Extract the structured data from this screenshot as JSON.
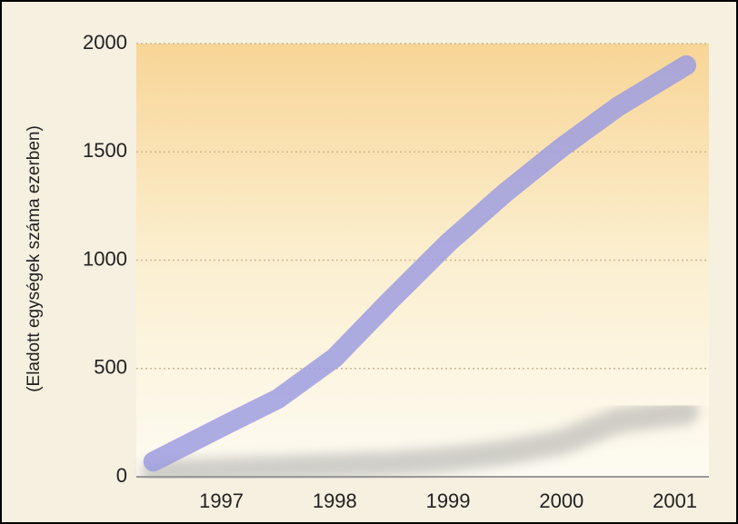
{
  "chart_data": {
    "type": "line",
    "y_label": "(Eladott egységek száma ezerben)",
    "x": [
      1996.4,
      1997,
      1997.5,
      1998,
      1998.5,
      1999,
      1999.5,
      2000,
      2000.5,
      2001.1
    ],
    "series": [
      {
        "color": "#9d9ee0",
        "values": [
          70,
          230,
          360,
          550,
          820,
          1080,
          1310,
          1520,
          1710,
          1900
        ]
      },
      {
        "color": "#9a9a9a",
        "values": [
          20,
          30,
          40,
          50,
          60,
          80,
          110,
          160,
          260,
          300
        ]
      }
    ],
    "xlim": [
      1996.25,
      2001.3
    ],
    "xticks": [
      1997,
      1998,
      1999,
      2000,
      2001
    ],
    "ylim": [
      0,
      2000
    ],
    "yticks": [
      0,
      500,
      1000,
      1500,
      2000
    ],
    "grid": true
  }
}
